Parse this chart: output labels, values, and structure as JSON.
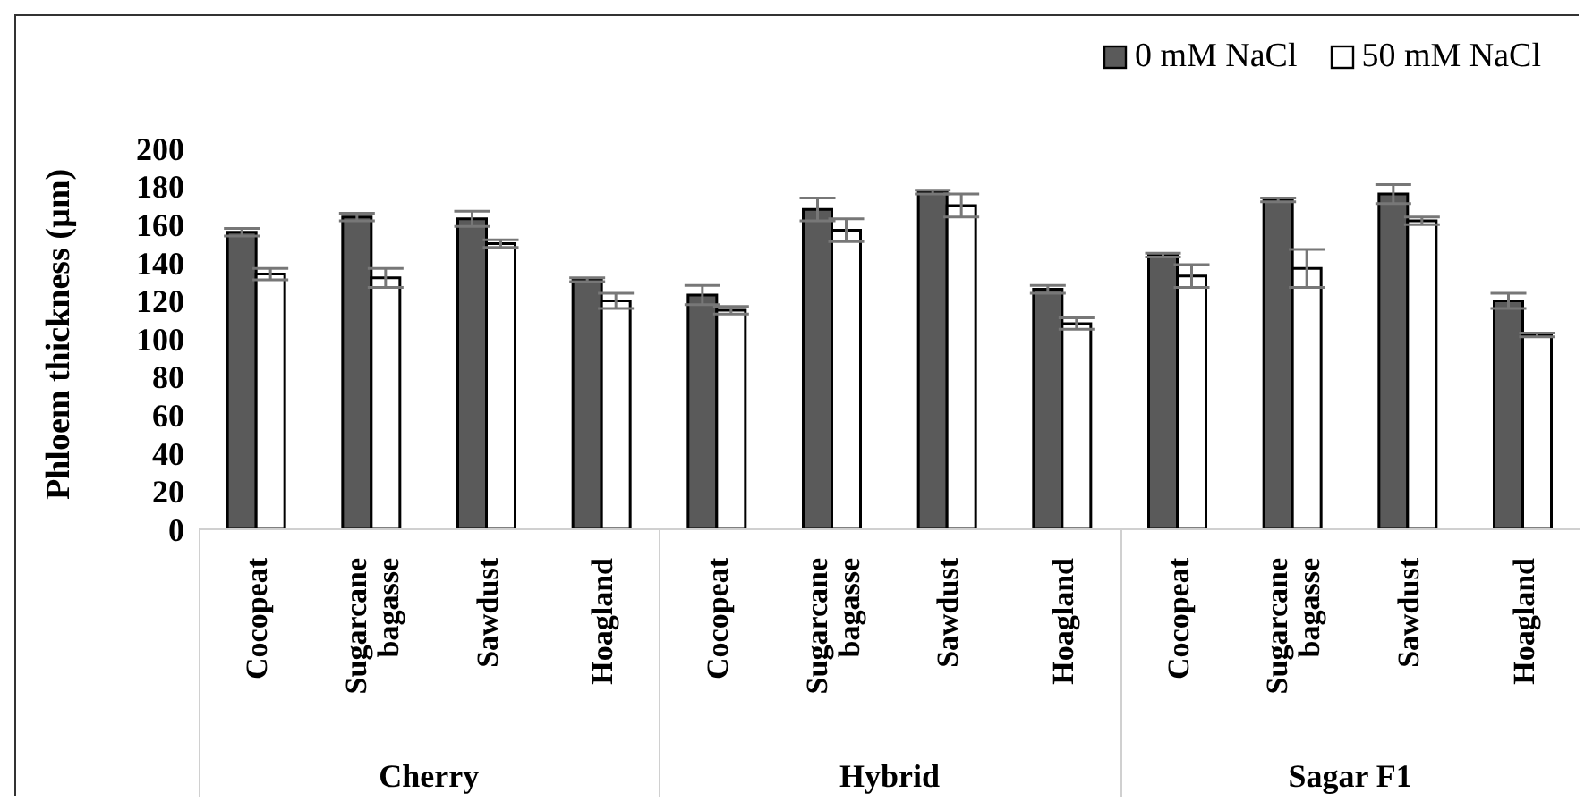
{
  "chart_data": {
    "type": "bar",
    "ylabel": "Phloem thickness (µm)",
    "categories": [
      "Cocopeat",
      "Sugarcane bagasse",
      "Sawdust",
      "Hoagland",
      "Cocopeat",
      "Sugarcane bagasse",
      "Sawdust",
      "Hoagland",
      "Cocopeat",
      "Sugarcane bagasse",
      "Sawdust",
      "Hoagland"
    ],
    "series": [
      {
        "name": "0 mM NaCl",
        "color": "#5a5a5a",
        "values": [
          156,
          164,
          163,
          131,
          123,
          168,
          177,
          126,
          144,
          173,
          176,
          120
        ],
        "errors": [
          2,
          2,
          4,
          1,
          5,
          6,
          1,
          2,
          1,
          1,
          5,
          4
        ]
      },
      {
        "name": "50 mM NaCl",
        "color": "#ffffff",
        "values": [
          134,
          132,
          150,
          120,
          115,
          157,
          170,
          108,
          133,
          137,
          162,
          102
        ],
        "errors": [
          3,
          5,
          2,
          4,
          2,
          6,
          6,
          3,
          6,
          10,
          2,
          1
        ]
      }
    ],
    "annotations": [
      "Cherry",
      "Hybrid",
      "Sagar F1"
    ],
    "ylim": [
      0,
      200
    ],
    "yticks": [
      0,
      20,
      40,
      60,
      80,
      100,
      120,
      140,
      160,
      180,
      200
    ],
    "grid": false,
    "legend": "top right"
  }
}
